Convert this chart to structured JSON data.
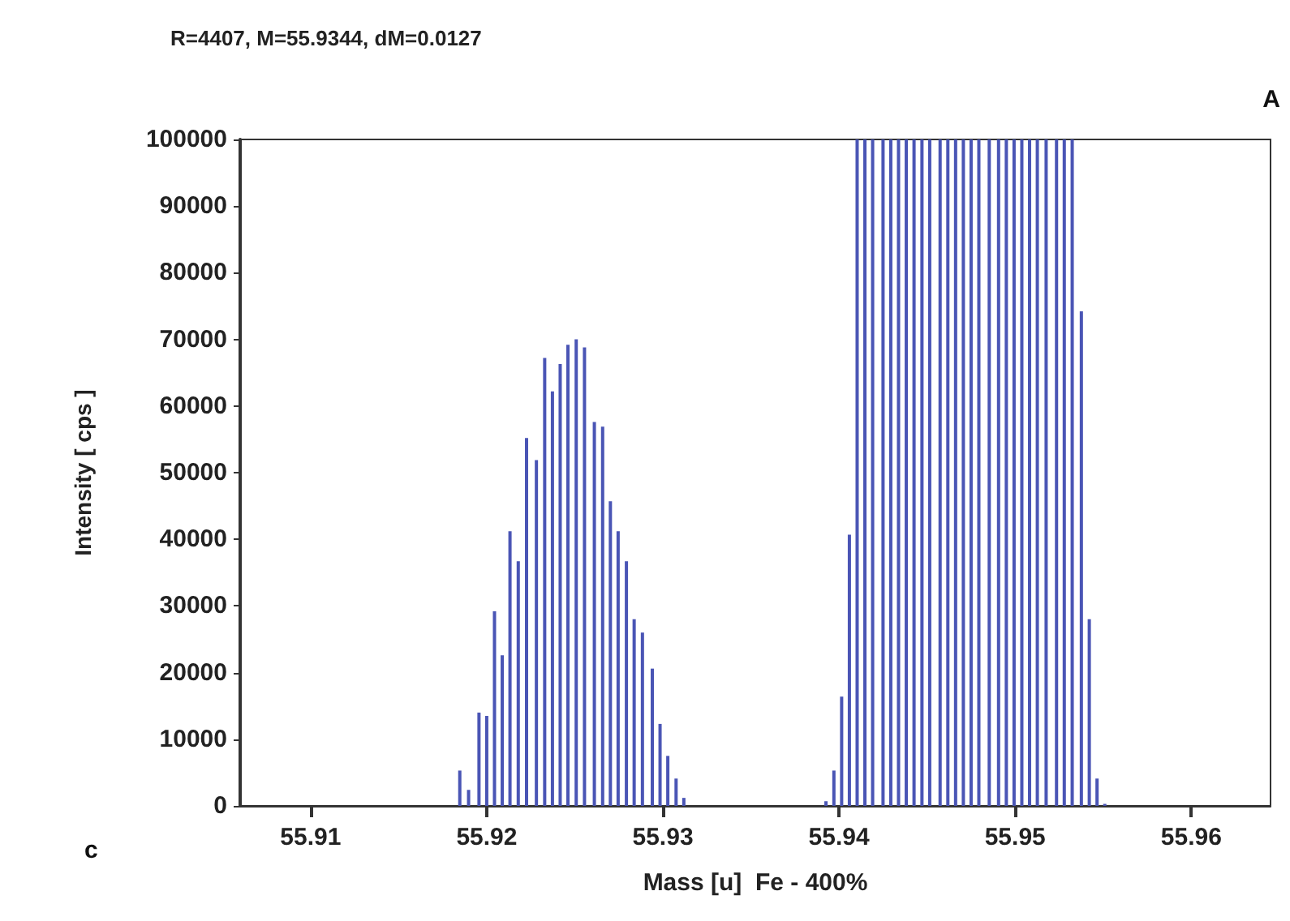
{
  "chart_data": {
    "type": "bar",
    "title": "R=4407, M=55.9344, dM=0.0127",
    "xlabel": "Mass [u]  Fe - 400%",
    "ylabel": "Intensity [ cps ]",
    "annotations": [
      "A",
      "c"
    ],
    "x": [
      55.91847,
      55.91897,
      55.91956,
      55.92,
      55.92044,
      55.92088,
      55.92132,
      55.92179,
      55.92226,
      55.92282,
      55.92329,
      55.92373,
      55.92417,
      55.92461,
      55.92508,
      55.92555,
      55.92611,
      55.92658,
      55.92702,
      55.92746,
      55.92793,
      55.92837,
      55.92884,
      55.9294,
      55.92984,
      55.93028,
      55.93075,
      55.93119,
      55.93926,
      55.93971,
      55.94015,
      55.94059,
      55.94103,
      55.94147,
      55.94191,
      55.9425,
      55.94294,
      55.94338,
      55.94382,
      55.94426,
      55.94471,
      55.94515,
      55.94574,
      55.94618,
      55.94662,
      55.94706,
      55.9475,
      55.94794,
      55.94853,
      55.94906,
      55.9495,
      55.94994,
      55.95038,
      55.95082,
      55.95126,
      55.95176,
      55.95235,
      55.95279,
      55.95324,
      55.95376,
      55.95421,
      55.95465,
      55.95509
    ],
    "values": [
      5300,
      2400,
      14000,
      13500,
      29200,
      22600,
      41200,
      36700,
      55200,
      51900,
      67200,
      62200,
      66300,
      69200,
      70000,
      68800,
      57600,
      56900,
      45700,
      41200,
      36700,
      28000,
      26000,
      20600,
      12300,
      7500,
      4100,
      1200,
      700,
      5300,
      16400,
      40700,
      100000,
      100000,
      100000,
      100000,
      100000,
      100000,
      100000,
      100000,
      100000,
      100000,
      100000,
      100000,
      100000,
      100000,
      100000,
      100000,
      100000,
      100000,
      100000,
      100000,
      100000,
      100000,
      100000,
      100000,
      100000,
      100000,
      100000,
      74200,
      28000,
      4100,
      300
    ],
    "color": "#4a55b5",
    "xlim": [
      55.906,
      55.9645
    ],
    "xticks": [
      55.91,
      55.92,
      55.93,
      55.94,
      55.95,
      55.96
    ],
    "ylim": [
      0,
      100000
    ],
    "yticks": [
      0,
      10000,
      20000,
      30000,
      40000,
      50000,
      60000,
      70000,
      80000,
      90000,
      100000
    ]
  }
}
